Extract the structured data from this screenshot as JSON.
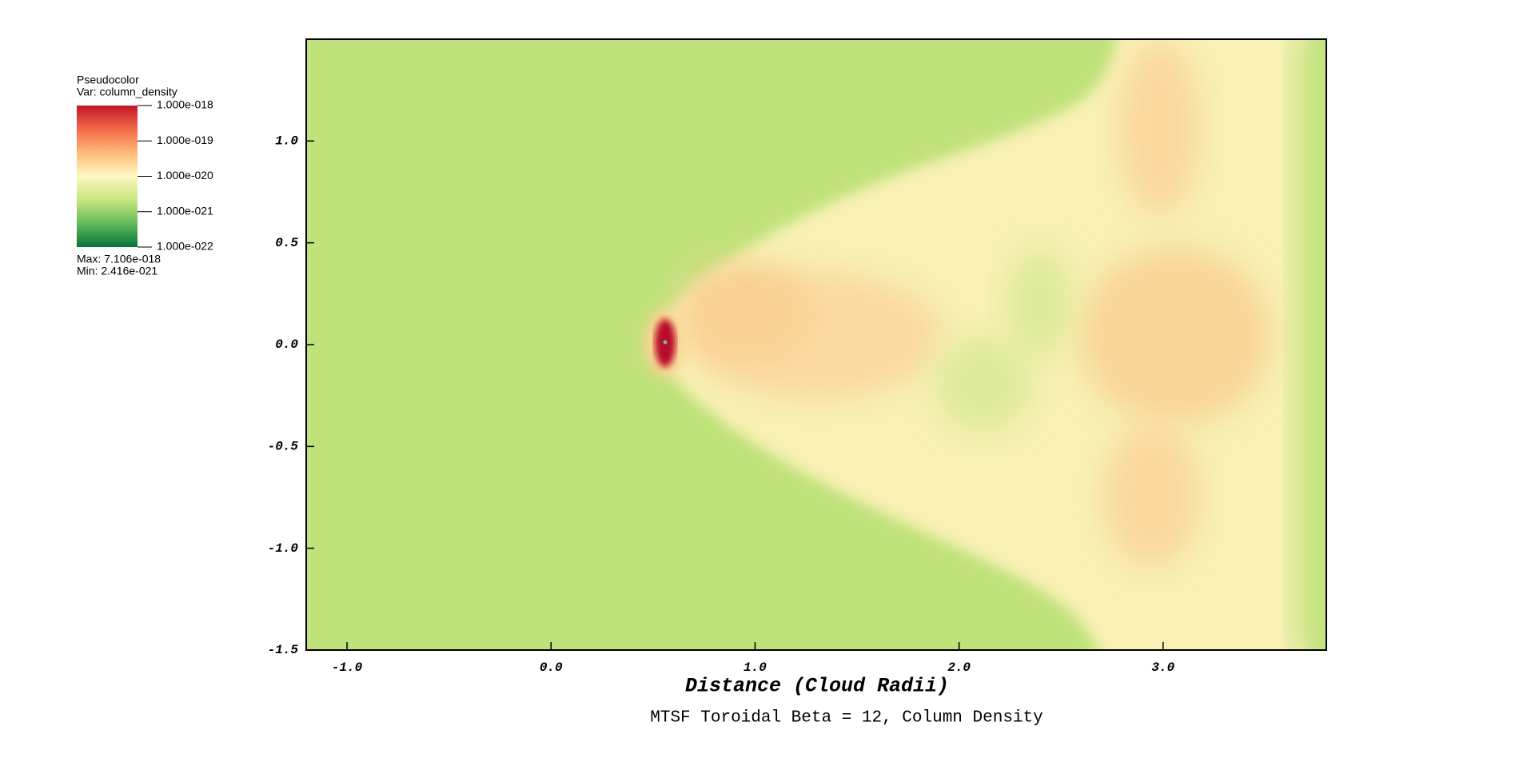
{
  "chart_data": {
    "type": "pseudocolor",
    "title": "MTSF Toroidal Beta = 12, Column Density",
    "x_label": "Distance (Cloud Radii)",
    "xlim": [
      -1.2,
      3.8
    ],
    "xticks": [
      {
        "value": -1,
        "label": "-1.0"
      },
      {
        "value": 0,
        "label": "0.0"
      },
      {
        "value": 1,
        "label": "1.0"
      },
      {
        "value": 2,
        "label": "2.0"
      },
      {
        "value": 3,
        "label": "3.0"
      }
    ],
    "ylim": [
      -1.5,
      1.5
    ],
    "yticks": [
      -1.5,
      {
        "value": -1,
        "label": "-1.0"
      },
      -0.5,
      {
        "value": 0,
        "label": "0.0"
      },
      0.5,
      {
        "value": 1,
        "label": "1.0"
      }
    ],
    "legend": {
      "title": "Pseudocolor",
      "variable": "Var: column_density",
      "scale": "log",
      "ticks": [
        {
          "value": 1e-18,
          "label": "1.000e-018"
        },
        {
          "value": 1e-19,
          "label": "1.000e-019"
        },
        {
          "value": 1e-20,
          "label": "1.000e-020"
        },
        {
          "value": 1e-21,
          "label": "1.000e-021"
        },
        {
          "value": 1e-22,
          "label": "1.000e-022"
        }
      ],
      "colormap": [
        "#c2142a",
        "#f26a47",
        "#fdbb76",
        "#fef8c4",
        "#c8e67e",
        "#63bb5c",
        "#05743a"
      ],
      "max": "Max:  7.106e-018",
      "min": "Min:  2.416e-021"
    }
  }
}
